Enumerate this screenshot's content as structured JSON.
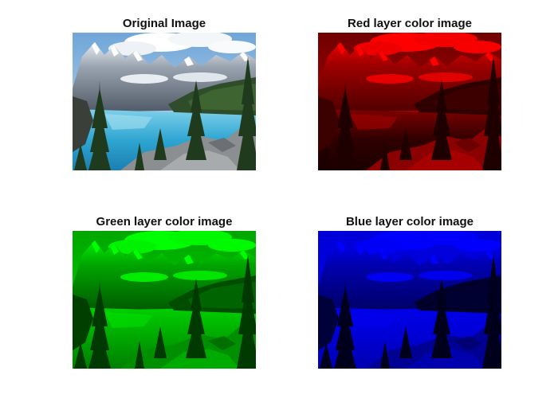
{
  "panels": {
    "original": {
      "title": "Original Image",
      "tint": "none"
    },
    "red": {
      "title": "Red layer color image",
      "tint": "#ff0000"
    },
    "green": {
      "title": "Green layer color image",
      "tint": "#00ff00"
    },
    "blue": {
      "title": "Blue layer color image",
      "tint": "#0000ff"
    }
  }
}
